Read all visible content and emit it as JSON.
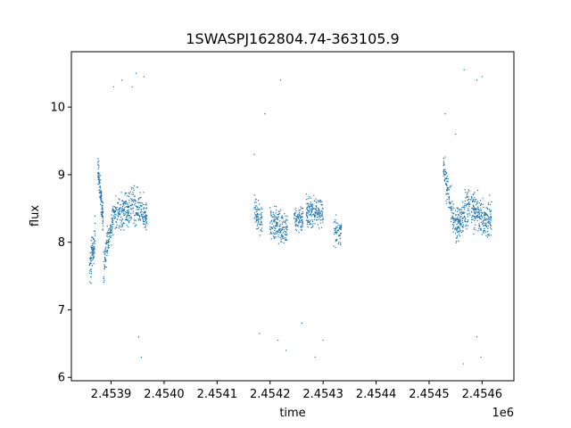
{
  "chart_data": {
    "type": "scatter",
    "title": "1SWASPJ162804.74-363105.9",
    "xlabel": "time",
    "ylabel": "flux",
    "x_offset_label": "1e6",
    "xlim": [
      2453825,
      2454660
    ],
    "ylim": [
      5.95,
      10.82
    ],
    "x_ticks": [
      2453900,
      2454000,
      2454100,
      2454200,
      2454300,
      2454400,
      2454500,
      2454600
    ],
    "x_tick_labels": [
      "2.4539",
      "2.4540",
      "2.4541",
      "2.4542",
      "2.4543",
      "2.4544",
      "2.4545",
      "2.4546"
    ],
    "y_ticks": [
      6,
      7,
      8,
      9,
      10
    ],
    "y_tick_labels": [
      "6",
      "7",
      "8",
      "9",
      "10"
    ],
    "grid": false,
    "legend": "none",
    "series": [
      {
        "color": "#1f77b4",
        "segments": [
          {
            "x": [
              2453859,
              2453870
            ],
            "y": [
              7.55,
              8.1
            ],
            "spread": 0.45,
            "n": 90
          },
          {
            "x": [
              2453875,
              2453885
            ],
            "y": [
              9.1,
              8.35
            ],
            "spread": 0.35,
            "n": 110
          },
          {
            "x": [
              2453886,
              2453905
            ],
            "y": [
              7.65,
              8.45
            ],
            "spread": 0.4,
            "n": 120
          },
          {
            "x": [
              2453906,
              2453935
            ],
            "y": [
              8.4,
              8.5
            ],
            "spread": 0.45,
            "n": 160
          },
          {
            "x": [
              2453936,
              2453968
            ],
            "y": [
              8.55,
              8.4
            ],
            "spread": 0.45,
            "n": 160
          },
          {
            "x": [
              2454170,
              2454185
            ],
            "y": [
              8.45,
              8.3
            ],
            "spread": 0.35,
            "n": 80
          },
          {
            "x": [
              2454200,
              2454233
            ],
            "y": [
              8.3,
              8.2
            ],
            "spread": 0.4,
            "n": 170
          },
          {
            "x": [
              2454245,
              2454262
            ],
            "y": [
              8.35,
              8.35
            ],
            "spread": 0.35,
            "n": 80
          },
          {
            "x": [
              2454268,
              2454300
            ],
            "y": [
              8.45,
              8.45
            ],
            "spread": 0.4,
            "n": 170
          },
          {
            "x": [
              2454320,
              2454335
            ],
            "y": [
              8.15,
              8.15
            ],
            "spread": 0.3,
            "n": 60
          },
          {
            "x": [
              2454527,
              2454547
            ],
            "y": [
              9.1,
              8.3
            ],
            "spread": 0.4,
            "n": 110
          },
          {
            "x": [
              2454548,
              2454578
            ],
            "y": [
              8.2,
              8.6
            ],
            "spread": 0.45,
            "n": 170
          },
          {
            "x": [
              2454579,
              2454605
            ],
            "y": [
              8.5,
              8.3
            ],
            "spread": 0.45,
            "n": 150
          },
          {
            "x": [
              2454606,
              2454618
            ],
            "y": [
              8.3,
              8.4
            ],
            "spread": 0.4,
            "n": 70
          }
        ],
        "outliers": [
          [
            2453947,
            10.5
          ],
          [
            2453940,
            10.3
          ],
          [
            2453962,
            10.45
          ],
          [
            2453952,
            6.6
          ],
          [
            2453957,
            6.3
          ],
          [
            2453920,
            10.4
          ],
          [
            2453905,
            10.3
          ],
          [
            2454220,
            10.4
          ],
          [
            2454190,
            9.9
          ],
          [
            2454170,
            9.3
          ],
          [
            2454180,
            6.65
          ],
          [
            2454215,
            6.55
          ],
          [
            2454230,
            6.4
          ],
          [
            2454285,
            6.3
          ],
          [
            2454260,
            6.8
          ],
          [
            2454300,
            6.55
          ],
          [
            2454566,
            10.55
          ],
          [
            2454590,
            10.4
          ],
          [
            2454600,
            10.45
          ],
          [
            2454565,
            6.2
          ],
          [
            2454598,
            6.3
          ],
          [
            2454590,
            6.6
          ],
          [
            2454550,
            9.6
          ],
          [
            2454530,
            9.9
          ]
        ]
      }
    ]
  }
}
